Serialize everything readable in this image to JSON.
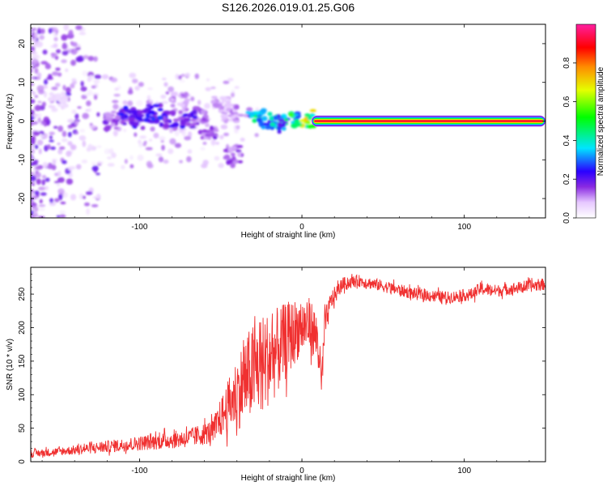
{
  "title": "S126.2026.019.01.25.G06",
  "chart_data": [
    {
      "type": "heatmap",
      "xlabel": "Height of straight line (km)",
      "ylabel": "Frequency (Hz)",
      "xlim": [
        -167,
        150
      ],
      "ylim": [
        -25,
        25
      ],
      "xticks": [
        -100,
        0,
        100
      ],
      "yticks": [
        -20,
        -10,
        0,
        10,
        20
      ],
      "colorbar": {
        "label": "Normalized spectral amplitude",
        "range": [
          0,
          1
        ],
        "ticks": [
          "0.0",
          "0.2",
          "0.4",
          "0.6",
          "0.8"
        ]
      },
      "ridge": {
        "x_range": [
          8,
          148
        ],
        "frequency": 0,
        "amplitude": 1.0
      },
      "clusters": [
        {
          "x": 3,
          "y": 0.5,
          "amp": 0.6
        },
        {
          "x": -5,
          "y": 0.8,
          "amp": 0.4
        },
        {
          "x": -10,
          "y": 0.3,
          "amp": 0.5
        },
        {
          "x": -15,
          "y": -0.6,
          "amp": 0.3
        },
        {
          "x": -22,
          "y": 0.1,
          "amp": 0.35
        },
        {
          "x": -28,
          "y": 0.7,
          "amp": 0.4
        },
        {
          "x": -42,
          "y": -8.5,
          "amp": 0.15
        },
        {
          "x": -45,
          "y": 2.0,
          "amp": 0.12
        },
        {
          "x": -50,
          "y": 4.0,
          "amp": 0.1
        },
        {
          "x": -58,
          "y": -3.0,
          "amp": 0.15
        },
        {
          "x": -62,
          "y": 1.5,
          "amp": 0.15
        },
        {
          "x": -70,
          "y": 0.5,
          "amp": 0.2
        },
        {
          "x": -75,
          "y": 5.0,
          "amp": 0.12
        },
        {
          "x": -82,
          "y": 0.2,
          "amp": 0.2
        },
        {
          "x": -92,
          "y": 2.0,
          "amp": 0.25
        },
        {
          "x": -100,
          "y": 0.4,
          "amp": 0.2
        },
        {
          "x": -108,
          "y": 1.5,
          "amp": 0.22
        },
        {
          "x": -118,
          "y": -0.5,
          "amp": 0.15
        },
        {
          "x": -150,
          "y": 5.0,
          "amp": 0.05
        }
      ]
    },
    {
      "type": "line",
      "xlabel": "Height of straight line (km)",
      "ylabel": "SNR (10 * v/v)",
      "xlim": [
        -167,
        150
      ],
      "ylim": [
        0,
        290
      ],
      "xticks": [
        -100,
        0,
        100
      ],
      "yticks": [
        0,
        50,
        100,
        150,
        200,
        250
      ],
      "color": "#f03030",
      "series": [
        {
          "name": "SNR",
          "x": [
            -167,
            -150,
            -130,
            -110,
            -90,
            -70,
            -55,
            -45,
            -38,
            -32,
            -25,
            -15,
            -8,
            -2,
            5,
            10,
            12,
            14,
            18,
            25,
            35,
            50,
            70,
            90,
            105,
            110,
            120,
            135,
            150
          ],
          "values": [
            12,
            15,
            20,
            25,
            30,
            35,
            45,
            85,
            110,
            130,
            145,
            165,
            185,
            200,
            205,
            180,
            110,
            200,
            240,
            265,
            270,
            262,
            250,
            245,
            250,
            258,
            255,
            260,
            265
          ],
          "noise": [
            6,
            6,
            8,
            10,
            12,
            14,
            18,
            40,
            60,
            70,
            75,
            65,
            55,
            45,
            40,
            40,
            30,
            25,
            15,
            10,
            9,
            9,
            9,
            9,
            9,
            10,
            9,
            9,
            9
          ]
        }
      ]
    }
  ]
}
